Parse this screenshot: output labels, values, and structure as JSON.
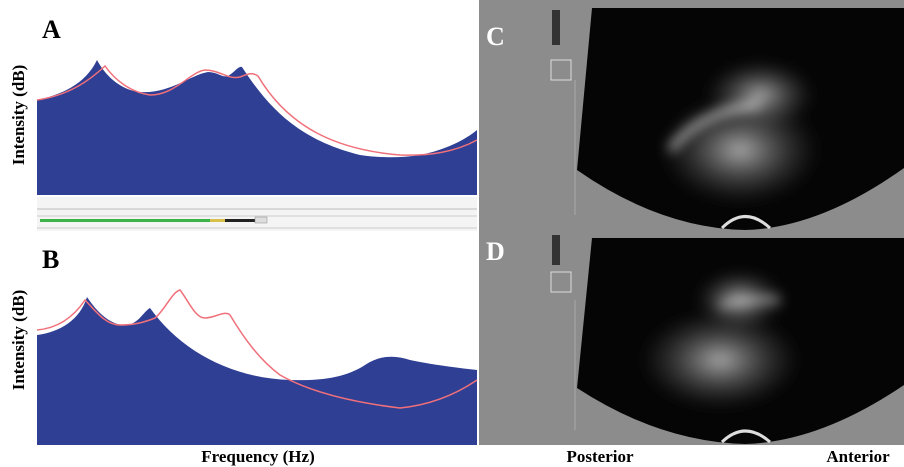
{
  "panels": {
    "a": {
      "label": "A"
    },
    "b": {
      "label": "B"
    },
    "c": {
      "label": "C"
    },
    "d": {
      "label": "D"
    }
  },
  "axes": {
    "y_label_top": "Intensity (dB)",
    "y_label_bottom": "Intensity (dB)",
    "x_label": "Frequency (Hz)",
    "posterior": "Posterior",
    "anterior": "Anterior"
  }
}
